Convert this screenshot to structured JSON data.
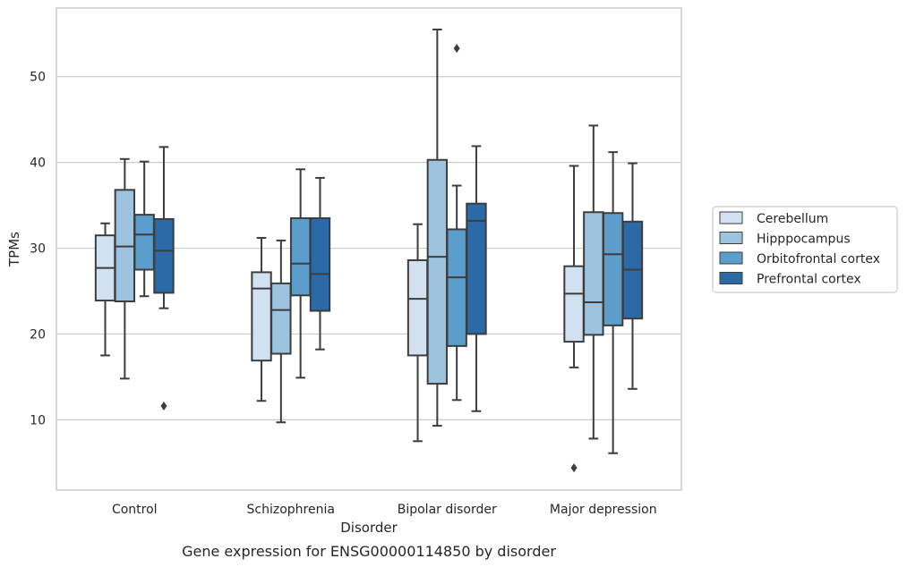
{
  "chart_data": {
    "type": "box",
    "caption": "Gene expression for ENSG00000114850 by disorder",
    "xlabel": "Disorder",
    "ylabel": "TPMs",
    "ylim": [
      1.8,
      58
    ],
    "yticks": [
      10,
      20,
      30,
      40,
      50
    ],
    "grid": "horizontal",
    "legend_position": "right",
    "categories": [
      "Control",
      "Schizophrenia",
      "Bipolar disorder",
      "Major depression"
    ],
    "series": [
      {
        "name": "Cerebellum",
        "color": "#d1e1f1",
        "boxes": [
          {
            "whisker_low": 17.5,
            "q1": 23.9,
            "median": 27.7,
            "q3": 31.5,
            "whisker_high": 32.9,
            "outliers": []
          },
          {
            "whisker_low": 12.2,
            "q1": 16.9,
            "median": 25.3,
            "q3": 27.2,
            "whisker_high": 31.2,
            "outliers": []
          },
          {
            "whisker_low": 7.5,
            "q1": 17.5,
            "median": 24.1,
            "q3": 28.6,
            "whisker_high": 32.8,
            "outliers": []
          },
          {
            "whisker_low": 16.1,
            "q1": 19.1,
            "median": 24.7,
            "q3": 27.9,
            "whisker_high": 39.6,
            "outliers": [
              4.4
            ]
          }
        ]
      },
      {
        "name": "Hipppocampus",
        "color": "#9dc3de",
        "boxes": [
          {
            "whisker_low": 14.8,
            "q1": 23.8,
            "median": 30.2,
            "q3": 36.8,
            "whisker_high": 40.4,
            "outliers": []
          },
          {
            "whisker_low": 9.7,
            "q1": 17.7,
            "median": 22.8,
            "q3": 25.9,
            "whisker_high": 30.9,
            "outliers": []
          },
          {
            "whisker_low": 9.3,
            "q1": 14.2,
            "median": 29.0,
            "q3": 40.3,
            "whisker_high": 55.5,
            "outliers": []
          },
          {
            "whisker_low": 7.8,
            "q1": 19.9,
            "median": 23.7,
            "q3": 34.2,
            "whisker_high": 44.3,
            "outliers": []
          }
        ]
      },
      {
        "name": "Orbitofrontal cortex",
        "color": "#5b9dcb",
        "boxes": [
          {
            "whisker_low": 24.4,
            "q1": 27.5,
            "median": 31.6,
            "q3": 33.9,
            "whisker_high": 40.1,
            "outliers": []
          },
          {
            "whisker_low": 14.9,
            "q1": 24.5,
            "median": 28.2,
            "q3": 33.5,
            "whisker_high": 39.2,
            "outliers": []
          },
          {
            "whisker_low": 12.3,
            "q1": 18.6,
            "median": 26.6,
            "q3": 32.2,
            "whisker_high": 37.3,
            "outliers": [
              53.3
            ]
          },
          {
            "whisker_low": 6.1,
            "q1": 21.0,
            "median": 29.3,
            "q3": 34.1,
            "whisker_high": 41.2,
            "outliers": []
          }
        ]
      },
      {
        "name": "Prefrontal cortex",
        "color": "#2b6aa6",
        "boxes": [
          {
            "whisker_low": 23.0,
            "q1": 24.8,
            "median": 29.7,
            "q3": 33.4,
            "whisker_high": 41.8,
            "outliers": [
              11.6
            ]
          },
          {
            "whisker_low": 18.2,
            "q1": 22.7,
            "median": 27.0,
            "q3": 33.5,
            "whisker_high": 38.2,
            "outliers": []
          },
          {
            "whisker_low": 11.0,
            "q1": 20.0,
            "median": 33.2,
            "q3": 35.2,
            "whisker_high": 41.9,
            "outliers": []
          },
          {
            "whisker_low": 13.6,
            "q1": 21.8,
            "median": 27.5,
            "q3": 33.1,
            "whisker_high": 39.9,
            "outliers": []
          }
        ]
      }
    ]
  }
}
